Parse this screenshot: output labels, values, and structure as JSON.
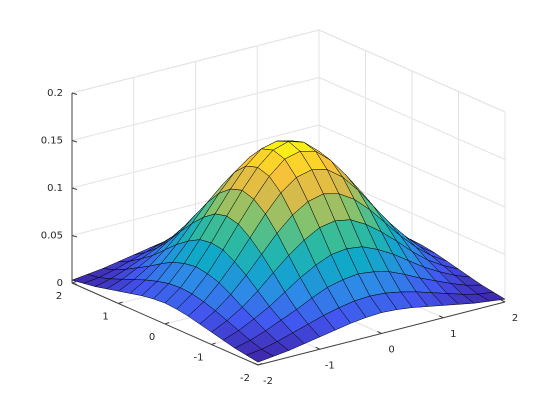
{
  "chart_data": {
    "type": "surface",
    "x": [
      -2,
      -1.75,
      -1.5,
      -1.25,
      -1,
      -0.75,
      -0.5,
      -0.25,
      0,
      0.25,
      0.5,
      0.75,
      1,
      1.25,
      1.5,
      1.75,
      2
    ],
    "y": [
      -2,
      -1.75,
      -1.5,
      -1.25,
      -1,
      -0.75,
      -0.5,
      -0.25,
      0,
      0.25,
      0.5,
      0.75,
      1,
      1.25,
      1.5,
      1.75,
      2
    ],
    "z": [
      [
        0.003,
        0.005,
        0.007,
        0.01,
        0.013,
        0.016,
        0.019,
        0.021,
        0.022,
        0.021,
        0.019,
        0.016,
        0.013,
        0.01,
        0.007,
        0.005,
        0.003
      ],
      [
        0.005,
        0.007,
        0.011,
        0.016,
        0.021,
        0.026,
        0.03,
        0.033,
        0.034,
        0.033,
        0.03,
        0.026,
        0.021,
        0.016,
        0.011,
        0.007,
        0.005
      ],
      [
        0.007,
        0.011,
        0.017,
        0.024,
        0.031,
        0.039,
        0.046,
        0.05,
        0.052,
        0.05,
        0.046,
        0.039,
        0.031,
        0.024,
        0.017,
        0.011,
        0.007
      ],
      [
        0.01,
        0.016,
        0.024,
        0.033,
        0.044,
        0.055,
        0.064,
        0.071,
        0.073,
        0.071,
        0.064,
        0.055,
        0.044,
        0.033,
        0.024,
        0.016,
        0.01
      ],
      [
        0.013,
        0.021,
        0.031,
        0.044,
        0.059,
        0.073,
        0.085,
        0.094,
        0.097,
        0.094,
        0.085,
        0.073,
        0.059,
        0.044,
        0.031,
        0.021,
        0.013
      ],
      [
        0.016,
        0.026,
        0.039,
        0.055,
        0.073,
        0.091,
        0.106,
        0.116,
        0.12,
        0.116,
        0.106,
        0.091,
        0.073,
        0.055,
        0.039,
        0.026,
        0.016
      ],
      [
        0.019,
        0.03,
        0.046,
        0.064,
        0.085,
        0.106,
        0.124,
        0.136,
        0.14,
        0.136,
        0.124,
        0.106,
        0.085,
        0.064,
        0.046,
        0.03,
        0.019
      ],
      [
        0.021,
        0.033,
        0.05,
        0.071,
        0.094,
        0.116,
        0.136,
        0.15,
        0.154,
        0.15,
        0.136,
        0.116,
        0.094,
        0.071,
        0.05,
        0.033,
        0.021
      ],
      [
        0.022,
        0.034,
        0.052,
        0.073,
        0.097,
        0.12,
        0.14,
        0.154,
        0.159,
        0.154,
        0.14,
        0.12,
        0.097,
        0.073,
        0.052,
        0.034,
        0.022
      ],
      [
        0.021,
        0.033,
        0.05,
        0.071,
        0.094,
        0.116,
        0.136,
        0.15,
        0.154,
        0.15,
        0.136,
        0.116,
        0.094,
        0.071,
        0.05,
        0.033,
        0.021
      ],
      [
        0.019,
        0.03,
        0.046,
        0.064,
        0.085,
        0.106,
        0.124,
        0.136,
        0.14,
        0.136,
        0.124,
        0.106,
        0.085,
        0.064,
        0.046,
        0.03,
        0.019
      ],
      [
        0.016,
        0.026,
        0.039,
        0.055,
        0.073,
        0.091,
        0.106,
        0.116,
        0.12,
        0.116,
        0.106,
        0.091,
        0.073,
        0.055,
        0.039,
        0.026,
        0.016
      ],
      [
        0.013,
        0.021,
        0.031,
        0.044,
        0.059,
        0.073,
        0.085,
        0.094,
        0.097,
        0.094,
        0.085,
        0.073,
        0.059,
        0.044,
        0.031,
        0.021,
        0.013
      ],
      [
        0.01,
        0.016,
        0.024,
        0.033,
        0.044,
        0.055,
        0.064,
        0.071,
        0.073,
        0.071,
        0.064,
        0.055,
        0.044,
        0.033,
        0.024,
        0.016,
        0.01
      ],
      [
        0.007,
        0.011,
        0.017,
        0.024,
        0.031,
        0.039,
        0.046,
        0.05,
        0.052,
        0.05,
        0.046,
        0.039,
        0.031,
        0.024,
        0.017,
        0.011,
        0.007
      ],
      [
        0.005,
        0.007,
        0.011,
        0.016,
        0.021,
        0.026,
        0.03,
        0.033,
        0.034,
        0.033,
        0.03,
        0.026,
        0.021,
        0.016,
        0.011,
        0.007,
        0.005
      ],
      [
        0.003,
        0.005,
        0.007,
        0.01,
        0.013,
        0.016,
        0.019,
        0.021,
        0.022,
        0.021,
        0.019,
        0.016,
        0.013,
        0.01,
        0.007,
        0.005,
        0.003
      ]
    ],
    "xlim": [
      -2,
      2
    ],
    "ylim": [
      -2,
      2
    ],
    "zlim": [
      0,
      0.2
    ],
    "xticks": [
      -2,
      -1,
      0,
      1,
      2
    ],
    "yticks": [
      -2,
      -1,
      0,
      1,
      2
    ],
    "zticks": [
      0,
      0.05,
      0.1,
      0.15,
      0.2
    ],
    "grid": true,
    "colormap": [
      "#3e26a8",
      "#4355f0",
      "#2d8ae6",
      "#11a9c8",
      "#2fbb9f",
      "#86c26d",
      "#d3bb4c",
      "#fcc337",
      "#f9fb0e"
    ]
  }
}
